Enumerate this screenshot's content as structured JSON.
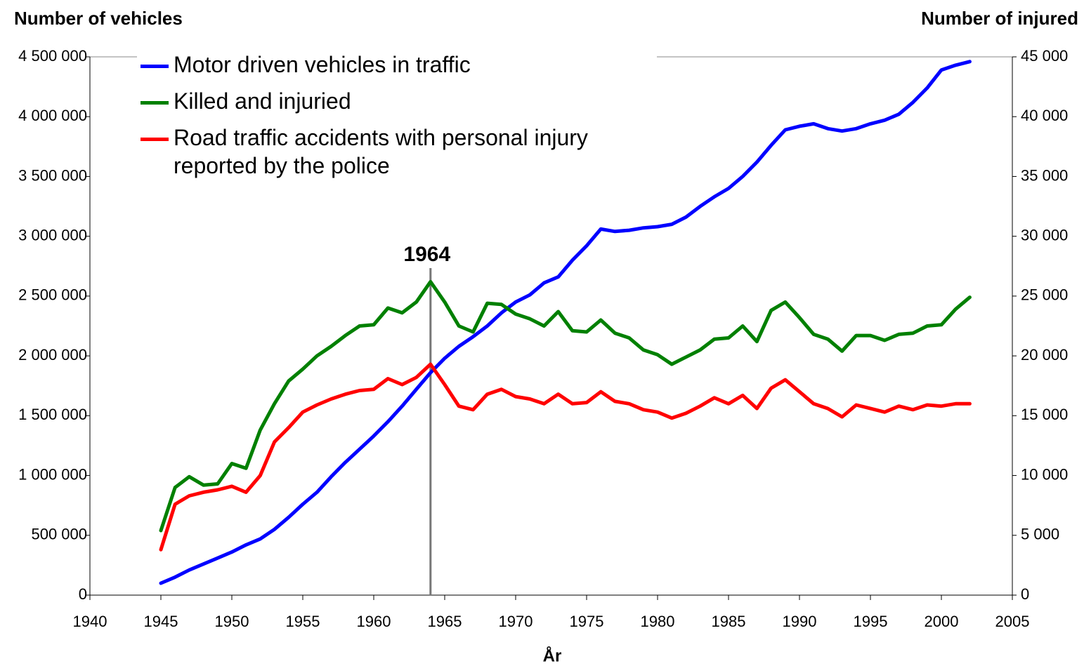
{
  "chart_data": {
    "type": "line",
    "ylabel": "Number of vehicles",
    "y2label": "Number of injured",
    "xlabel": "År",
    "x": [
      1945,
      1946,
      1947,
      1948,
      1949,
      1950,
      1951,
      1952,
      1953,
      1954,
      1955,
      1956,
      1957,
      1958,
      1959,
      1960,
      1961,
      1962,
      1963,
      1964,
      1965,
      1966,
      1967,
      1968,
      1969,
      1970,
      1971,
      1972,
      1973,
      1974,
      1975,
      1976,
      1977,
      1978,
      1979,
      1980,
      1981,
      1982,
      1983,
      1984,
      1985,
      1986,
      1987,
      1988,
      1989,
      1990,
      1991,
      1992,
      1993,
      1994,
      1995,
      1996,
      1997,
      1998,
      1999,
      2000,
      2001,
      2002
    ],
    "series": [
      {
        "name": "Motor driven vehicles in traffic",
        "color": "#0000ff",
        "axis": "y",
        "values": [
          100000,
          150000,
          210000,
          260000,
          310000,
          360000,
          420000,
          470000,
          550000,
          650000,
          760000,
          860000,
          990000,
          1110000,
          1220000,
          1330000,
          1450000,
          1580000,
          1720000,
          1860000,
          1980000,
          2080000,
          2160000,
          2250000,
          2360000,
          2450000,
          2510000,
          2610000,
          2660000,
          2800000,
          2920000,
          3060000,
          3040000,
          3050000,
          3070000,
          3080000,
          3100000,
          3160000,
          3250000,
          3330000,
          3400000,
          3500000,
          3620000,
          3760000,
          3890000,
          3920000,
          3940000,
          3900000,
          3880000,
          3900000,
          3940000,
          3970000,
          4020000,
          4120000,
          4240000,
          4390000,
          4430000,
          4460000
        ]
      },
      {
        "name": "Killed and injuried",
        "color": "#008000",
        "axis": "y2",
        "values": [
          5400,
          9000,
          9900,
          9200,
          9300,
          11000,
          10600,
          13800,
          16000,
          17900,
          18900,
          20000,
          20800,
          21700,
          22500,
          22600,
          24000,
          23600,
          24500,
          26200,
          24500,
          22500,
          22000,
          24400,
          24300,
          23500,
          23100,
          22500,
          23700,
          22100,
          22000,
          23000,
          21900,
          21500,
          20500,
          20100,
          19300,
          19900,
          20500,
          21400,
          21500,
          22500,
          21200,
          23800,
          24500,
          23200,
          21800,
          21400,
          20400,
          21700,
          21700,
          21300,
          21800,
          21900,
          22500,
          22600,
          23900,
          24900
        ]
      },
      {
        "name": "Road traffic accidents with personal injury reported by the police",
        "color": "#ff0000",
        "axis": "y2",
        "values": [
          3800,
          7600,
          8300,
          8600,
          8800,
          9100,
          8600,
          10000,
          12800,
          14000,
          15300,
          15900,
          16400,
          16800,
          17100,
          17200,
          18100,
          17600,
          18200,
          19300,
          17600,
          15800,
          15500,
          16800,
          17200,
          16600,
          16400,
          16000,
          16800,
          16000,
          16100,
          17000,
          16200,
          16000,
          15500,
          15300,
          14800,
          15200,
          15800,
          16500,
          16000,
          16700,
          15600,
          17300,
          18000,
          17000,
          16000,
          15600,
          14900,
          15900,
          15600,
          15300,
          15800,
          15500,
          15900,
          15800,
          16000,
          16000
        ]
      }
    ],
    "xlim": [
      1940,
      2005
    ],
    "xticks": [
      1940,
      1945,
      1950,
      1955,
      1960,
      1965,
      1970,
      1975,
      1980,
      1985,
      1990,
      1995,
      2000,
      2005
    ],
    "ylim": [
      0,
      4500000
    ],
    "yticks": [
      0,
      {
        "value": 500000,
        "label": "500 000"
      },
      {
        "value": 1000000,
        "label": "1 000 000"
      },
      {
        "value": 1500000,
        "label": "1 500 000"
      },
      {
        "value": 2000000,
        "label": "2 000 000"
      },
      {
        "value": 2500000,
        "label": "2 500 000"
      },
      {
        "value": 3000000,
        "label": "3 000 000"
      },
      {
        "value": 3500000,
        "label": "3 500 000"
      },
      {
        "value": 4000000,
        "label": "4 000 000"
      },
      {
        "value": 4500000,
        "label": "4 500 000"
      }
    ],
    "y2lim": [
      0,
      45000
    ],
    "y2ticks": [
      0,
      {
        "value": 5000,
        "label": "5 000"
      },
      {
        "value": 10000,
        "label": "10 000"
      },
      {
        "value": 15000,
        "label": "15 000"
      },
      {
        "value": 20000,
        "label": "20 000"
      },
      {
        "value": 25000,
        "label": "25 000"
      },
      {
        "value": 30000,
        "label": "30 000"
      },
      {
        "value": 35000,
        "label": "35 000"
      },
      {
        "value": 40000,
        "label": "40 000"
      },
      {
        "value": 45000,
        "label": "45 000"
      }
    ],
    "annotation": {
      "text": "1964",
      "x": 1964
    },
    "grid": false,
    "legend": "upper left"
  }
}
